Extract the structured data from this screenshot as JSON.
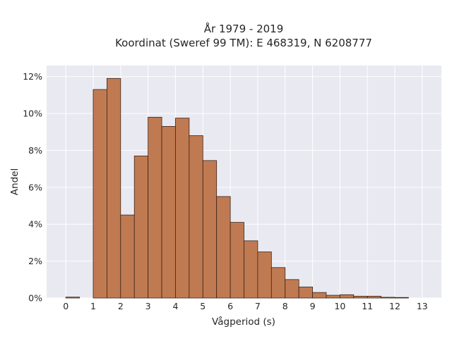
{
  "chart_data": {
    "type": "bar",
    "title": "År 1979 - 2019",
    "subtitle": "Koordinat (Sweref 99 TM): E 468319, N 6208777",
    "xlabel": "Vågperiod (s)",
    "ylabel": "Andel",
    "x_ticks": [
      0,
      1,
      2,
      3,
      4,
      5,
      6,
      7,
      8,
      9,
      10,
      11,
      12,
      13
    ],
    "x_tick_labels": [
      "0",
      "1",
      "2",
      "3",
      "4",
      "5",
      "6",
      "7",
      "8",
      "9",
      "10",
      "11",
      "12",
      "13"
    ],
    "y_ticks": [
      0,
      2,
      4,
      6,
      8,
      10,
      12
    ],
    "y_tick_labels": [
      "0%",
      "2%",
      "4%",
      "6%",
      "8%",
      "10%",
      "12%"
    ],
    "xlim": [
      -0.7,
      13.7
    ],
    "ylim": [
      0,
      12.6
    ],
    "bin_width": 0.5,
    "bins": [
      {
        "start": 0.0,
        "value": 0.05
      },
      {
        "start": 1.0,
        "value": 11.3
      },
      {
        "start": 1.5,
        "value": 11.9
      },
      {
        "start": 2.0,
        "value": 4.5
      },
      {
        "start": 2.5,
        "value": 7.7
      },
      {
        "start": 3.0,
        "value": 9.8
      },
      {
        "start": 3.5,
        "value": 9.3
      },
      {
        "start": 4.0,
        "value": 9.75
      },
      {
        "start": 4.5,
        "value": 8.8
      },
      {
        "start": 5.0,
        "value": 7.45
      },
      {
        "start": 5.5,
        "value": 5.5
      },
      {
        "start": 6.0,
        "value": 4.1
      },
      {
        "start": 6.5,
        "value": 3.1
      },
      {
        "start": 7.0,
        "value": 2.5
      },
      {
        "start": 7.5,
        "value": 1.65
      },
      {
        "start": 8.0,
        "value": 1.0
      },
      {
        "start": 8.5,
        "value": 0.6
      },
      {
        "start": 9.0,
        "value": 0.3
      },
      {
        "start": 9.5,
        "value": 0.15
      },
      {
        "start": 10.0,
        "value": 0.18
      },
      {
        "start": 10.5,
        "value": 0.1
      },
      {
        "start": 11.0,
        "value": 0.1
      },
      {
        "start": 11.5,
        "value": 0.04
      },
      {
        "start": 12.0,
        "value": 0.03
      }
    ],
    "grid": true,
    "colors": {
      "bar_fill": "#c07a52",
      "bar_edge": "#3a2418",
      "plot_background": "#e9e9f1",
      "grid": "#ffffff"
    }
  }
}
